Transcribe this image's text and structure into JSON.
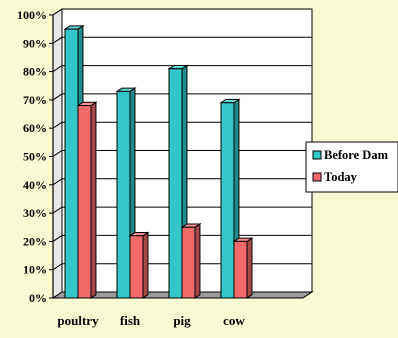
{
  "chart_data": {
    "type": "bar",
    "categories": [
      "poultry",
      "fish",
      "pig",
      "cow"
    ],
    "series": [
      {
        "name": "Before Dam",
        "values": [
          95,
          73,
          81,
          69
        ],
        "color": "#33c7c9"
      },
      {
        "name": "Today",
        "values": [
          68,
          22,
          25,
          20
        ],
        "color": "#f26a6a"
      }
    ],
    "y_ticks": [
      "0%",
      "10%",
      "20%",
      "30%",
      "40%",
      "50%",
      "60%",
      "70%",
      "80%",
      "90%",
      "100%"
    ],
    "ylim": [
      0,
      100
    ],
    "grid": true,
    "legend_position": "right",
    "colors": {
      "background": "#fafad2",
      "wall": "#ffffff",
      "floor": "#9a9a9a",
      "axis": "#000000"
    }
  }
}
